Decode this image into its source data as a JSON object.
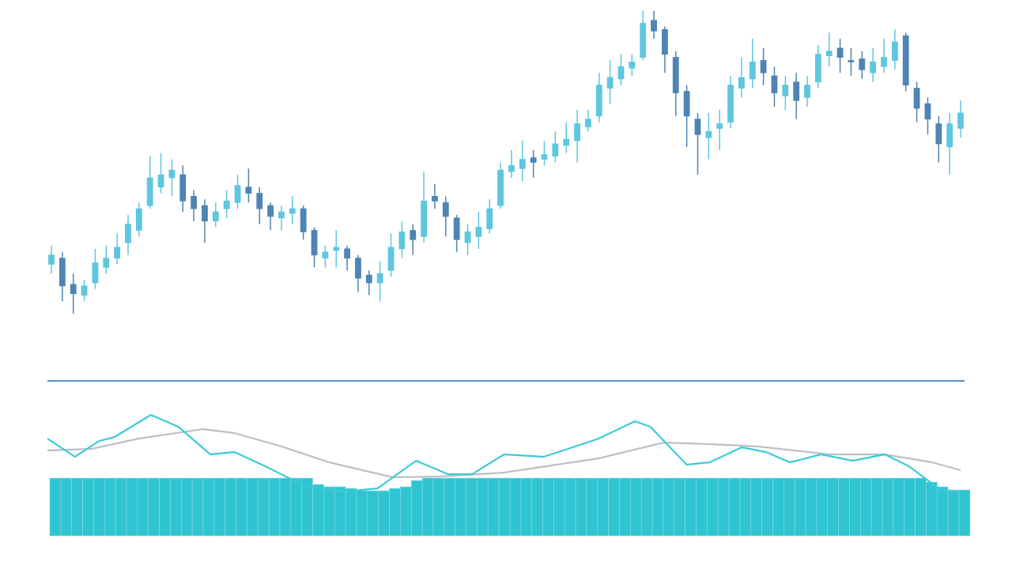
{
  "chart_data": [
    {
      "type": "candlestick",
      "up_color": "#5ec6de",
      "down_color": "#4f84b4",
      "ylim": [
        -5,
        105
      ],
      "open": [
        22,
        24,
        15.5,
        12,
        16,
        21,
        24,
        29,
        33,
        41,
        47,
        50,
        51,
        44,
        41,
        36,
        40,
        42,
        47,
        45,
        41,
        37,
        38.5,
        40,
        33,
        24,
        26.5,
        27,
        24,
        18.5,
        16,
        20,
        27,
        33,
        31,
        44,
        42,
        37,
        29,
        31,
        33.5,
        41,
        52,
        53,
        56.5,
        56,
        57,
        60.5,
        62,
        66.5,
        70,
        79,
        82,
        85.5,
        89,
        101,
        98,
        89,
        78,
        69,
        63,
        66,
        68,
        79,
        82,
        88,
        83,
        76.5,
        81,
        76,
        81,
        89.5,
        92,
        88,
        88.5,
        84,
        86,
        88,
        96,
        79,
        74,
        67.5,
        60,
        66
      ],
      "high": [
        28,
        26,
        19,
        17,
        27,
        28,
        32,
        38,
        42,
        57,
        58,
        56,
        54,
        46,
        43,
        42,
        46,
        51,
        53,
        47,
        42,
        41,
        44,
        41,
        34,
        28,
        33,
        28,
        25,
        20,
        23,
        32,
        36,
        35,
        52,
        48,
        44,
        38,
        35,
        39,
        43,
        55,
        59,
        62,
        59,
        62,
        65,
        68,
        72,
        72,
        84,
        88,
        90,
        90,
        104,
        104,
        99,
        91,
        80,
        71,
        71,
        72,
        83,
        89,
        95,
        92,
        86,
        83,
        84,
        83,
        93,
        97,
        95,
        92,
        91,
        92,
        95,
        98,
        97,
        81,
        76,
        70,
        71,
        75
      ],
      "low": [
        19,
        10,
        6,
        10,
        14,
        19,
        22,
        25,
        31,
        40,
        45,
        44,
        39,
        36,
        29,
        34,
        37,
        40,
        42,
        35,
        33,
        33,
        35,
        30,
        21,
        21,
        21,
        20,
        13,
        12,
        10,
        18,
        24,
        25,
        29,
        40,
        31,
        26,
        25,
        27,
        32,
        40,
        50,
        49,
        50,
        54,
        55,
        58,
        55,
        65,
        68,
        74,
        80,
        83,
        88,
        95,
        84,
        70,
        60,
        51,
        56,
        59,
        66,
        76,
        79,
        80,
        73,
        72,
        69,
        73,
        79,
        86,
        84,
        83,
        82,
        81,
        84,
        85,
        78,
        68,
        64,
        55,
        51,
        63
      ],
      "close": [
        25,
        15,
        12.5,
        15,
        22.5,
        24,
        27.5,
        35,
        40,
        50,
        51,
        52.5,
        42.5,
        40,
        36,
        39,
        42.5,
        47.5,
        45,
        40,
        37.5,
        39,
        40,
        32.5,
        25,
        26,
        27.5,
        24,
        17.5,
        16,
        19,
        27.5,
        32.5,
        30,
        42.5,
        42.5,
        37.5,
        30,
        32.5,
        34,
        40,
        52.5,
        54,
        56,
        55,
        57.5,
        61,
        62.5,
        67.5,
        69,
        80,
        82.5,
        86,
        87.5,
        100,
        97.5,
        90,
        77.5,
        70,
        64,
        65,
        67.5,
        80,
        82.5,
        87.5,
        84,
        77.5,
        80,
        75,
        80,
        90,
        91,
        89,
        87.5,
        85,
        87.5,
        89,
        94,
        80,
        72.5,
        69,
        61,
        67.5,
        71
      ]
    },
    {
      "type": "bar",
      "color": "#2fc4d2",
      "ylim": [
        0,
        170
      ],
      "xlim": [
        0,
        83
      ],
      "values": [
        73,
        73,
        73,
        73,
        73,
        73,
        73,
        73,
        73,
        73,
        73,
        73,
        73,
        73,
        73,
        73,
        73,
        73,
        73,
        73,
        73,
        73,
        73,
        73,
        65,
        62,
        62,
        60,
        57,
        57,
        57,
        60,
        62,
        70,
        73,
        73,
        73,
        73,
        73,
        73,
        73,
        73,
        73,
        73,
        73,
        73,
        73,
        73,
        73,
        73,
        73,
        73,
        73,
        73,
        73,
        73,
        73,
        73,
        73,
        73,
        73,
        73,
        73,
        73,
        73,
        73,
        73,
        73,
        73,
        73,
        73,
        73,
        73,
        73,
        73,
        73,
        73,
        73,
        73,
        73,
        68,
        62,
        58,
        58
      ]
    },
    {
      "type": "line",
      "ylim": [
        0,
        170
      ],
      "xlim": [
        0,
        83
      ],
      "series": [
        {
          "color": "#bcc0c5",
          "x": [
            0,
            4,
            8.3,
            14.1,
            17,
            21.3,
            25.6,
            31.4,
            35.7,
            41.5,
            50.1,
            56,
            60.2,
            64.6,
            71.1,
            76.1,
            80.4,
            83
          ],
          "values": [
            108,
            110,
            123,
            135,
            130,
            113,
            93,
            74,
            75,
            80,
            98,
            118,
            116,
            113,
            103,
            103,
            93,
            83
          ]
        },
        {
          "color": "#3ccbd9",
          "x": [
            0,
            2.5,
            4.7,
            6.1,
            9.4,
            11.9,
            14.8,
            17,
            19.8,
            23.4,
            27,
            30,
            33.5,
            36.4,
            38.6,
            41.5,
            45.1,
            47.3,
            50.1,
            53.4,
            54.8,
            58.1,
            60.2,
            63.1,
            65.3,
            67.5,
            70.3,
            73.2,
            76.1,
            78.3,
            81.2,
            83
          ],
          "values": [
            123,
            100,
            120,
            125,
            153,
            138,
            103,
            106,
            88,
            63,
            56,
            60,
            95,
            78,
            78,
            103,
            100,
            110,
            123,
            145,
            138,
            90,
            93,
            112,
            106,
            93,
            103,
            95,
            103,
            88,
            58,
            56
          ]
        }
      ]
    }
  ]
}
